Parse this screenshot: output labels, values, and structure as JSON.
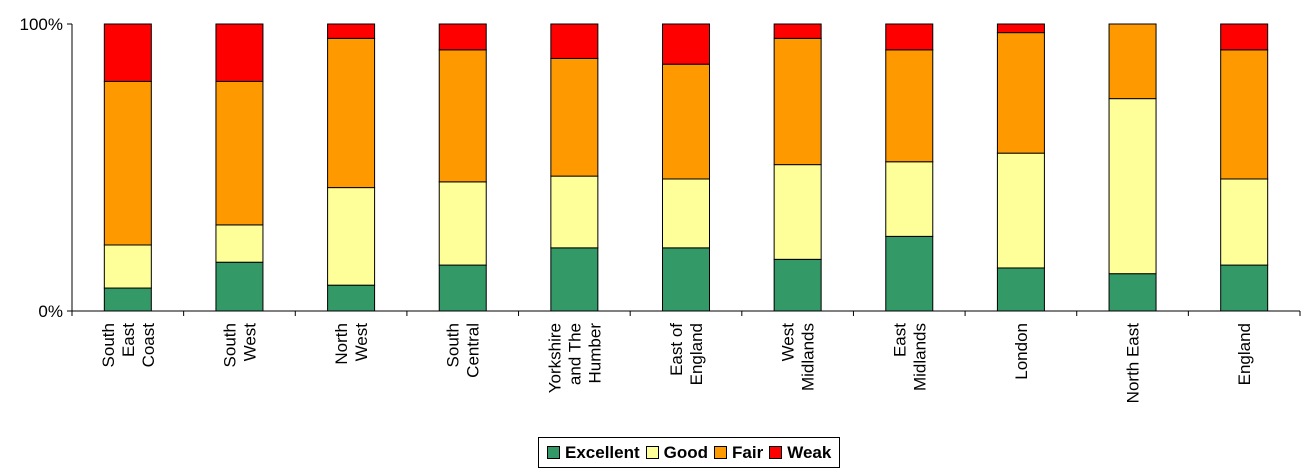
{
  "chart_data": {
    "type": "bar",
    "stacked": true,
    "normalized": true,
    "categories": [
      [
        "South",
        "East",
        "Coast"
      ],
      [
        "South",
        "West"
      ],
      [
        "North",
        "West"
      ],
      [
        "South",
        "Central"
      ],
      [
        "Yorkshire",
        "and The",
        "Humber"
      ],
      [
        "East of",
        "England"
      ],
      [
        "West",
        "Midlands"
      ],
      [
        "East",
        "Midlands"
      ],
      [
        "London"
      ],
      [
        "North East"
      ],
      [
        "England"
      ]
    ],
    "series": [
      {
        "name": "Excellent",
        "color": "#339966",
        "values": [
          8,
          17,
          9,
          16,
          22,
          22,
          18,
          26,
          15,
          13,
          16
        ]
      },
      {
        "name": "Good",
        "color": "#ffff99",
        "values": [
          15,
          13,
          34,
          29,
          25,
          24,
          33,
          26,
          40,
          61,
          30
        ]
      },
      {
        "name": "Fair",
        "color": "#ff9900",
        "values": [
          57,
          50,
          52,
          46,
          41,
          40,
          44,
          39,
          42,
          26,
          45
        ]
      },
      {
        "name": "Weak",
        "color": "#ff0000",
        "values": [
          20,
          20,
          5,
          9,
          12,
          14,
          5,
          9,
          3,
          0,
          9
        ]
      }
    ],
    "ylim": [
      0,
      100
    ],
    "yticks": [
      "0%",
      "100%"
    ],
    "xlabel": "",
    "ylabel": "",
    "legend": {
      "placement": "bottom"
    }
  }
}
